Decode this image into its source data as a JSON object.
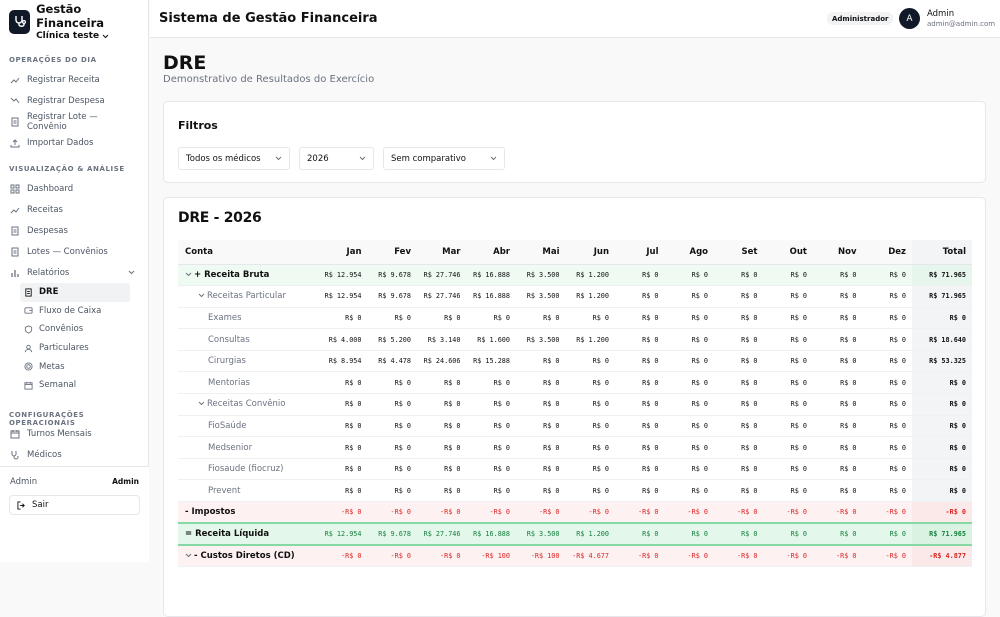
{
  "app": {
    "name": "Gestão Financeira",
    "clinic": "Clínica teste"
  },
  "sidebar": {
    "sections": [
      {
        "title": "OPERAÇÕES DO DIA",
        "items": [
          "Registrar Receita",
          "Registrar Despesa",
          "Registrar Lote — Convênio",
          "Importar Dados"
        ]
      },
      {
        "title": "VISUALIZAÇÃO & ANÁLISE",
        "items": [
          "Dashboard",
          "Receitas",
          "Despesas",
          "Lotes — Convênios",
          "Relatórios"
        ]
      },
      {
        "title": "CONFIGURAÇÕES OPERACIONAIS",
        "items": [
          "Turnos Mensais",
          "Médicos"
        ]
      }
    ],
    "subitems": [
      "DRE",
      "Fluxo de Caixa",
      "Convênios",
      "Particulares",
      "Metas",
      "Semanal"
    ],
    "active_subitem": "DRE",
    "footer": {
      "user_label": "Admin",
      "role": "Admin",
      "logout": "Sair"
    }
  },
  "topbar": {
    "title": "Sistema de Gestão Financeira",
    "role_badge": "Administrador",
    "avatar_initial": "A",
    "user_name": "Admin",
    "user_email": "admin@admin.com"
  },
  "page": {
    "title": "DRE",
    "subtitle": "Demonstrativo de Resultados do Exercício"
  },
  "filters": {
    "title": "Filtros",
    "doctor": "Todos os médicos",
    "year": "2026",
    "comparison": "Sem comparativo"
  },
  "dre": {
    "title": "DRE - 2026",
    "columns": [
      "Conta",
      "Jan",
      "Fev",
      "Mar",
      "Abr",
      "Mai",
      "Jun",
      "Jul",
      "Ago",
      "Set",
      "Out",
      "Nov",
      "Dez",
      "Total"
    ],
    "rows": [
      {
        "label": "+ Receita Bruta",
        "level": 0,
        "style": "green",
        "chevron": true,
        "values": [
          "R$ 12.954",
          "R$ 9.678",
          "R$ 27.746",
          "R$ 16.888",
          "R$ 3.500",
          "R$ 1.200",
          "R$ 0",
          "R$ 0",
          "R$ 0",
          "R$ 0",
          "R$ 0",
          "R$ 0",
          "R$ 71.965"
        ]
      },
      {
        "label": "Receitas Particular",
        "level": 1,
        "style": "",
        "chevron": true,
        "values": [
          "R$ 12.954",
          "R$ 9.678",
          "R$ 27.746",
          "R$ 16.888",
          "R$ 3.500",
          "R$ 1.200",
          "R$ 0",
          "R$ 0",
          "R$ 0",
          "R$ 0",
          "R$ 0",
          "R$ 0",
          "R$ 71.965"
        ]
      },
      {
        "label": "Exames",
        "level": 2,
        "style": "",
        "chevron": false,
        "values": [
          "R$ 0",
          "R$ 0",
          "R$ 0",
          "R$ 0",
          "R$ 0",
          "R$ 0",
          "R$ 0",
          "R$ 0",
          "R$ 0",
          "R$ 0",
          "R$ 0",
          "R$ 0",
          "R$ 0"
        ]
      },
      {
        "label": "Consultas",
        "level": 2,
        "style": "",
        "chevron": false,
        "values": [
          "R$ 4.000",
          "R$ 5.200",
          "R$ 3.140",
          "R$ 1.600",
          "R$ 3.500",
          "R$ 1.200",
          "R$ 0",
          "R$ 0",
          "R$ 0",
          "R$ 0",
          "R$ 0",
          "R$ 0",
          "R$ 18.640"
        ]
      },
      {
        "label": "Cirurgias",
        "level": 2,
        "style": "",
        "chevron": false,
        "values": [
          "R$ 8.954",
          "R$ 4.478",
          "R$ 24.606",
          "R$ 15.288",
          "R$ 0",
          "R$ 0",
          "R$ 0",
          "R$ 0",
          "R$ 0",
          "R$ 0",
          "R$ 0",
          "R$ 0",
          "R$ 53.325"
        ]
      },
      {
        "label": "Mentorias",
        "level": 2,
        "style": "",
        "chevron": false,
        "values": [
          "R$ 0",
          "R$ 0",
          "R$ 0",
          "R$ 0",
          "R$ 0",
          "R$ 0",
          "R$ 0",
          "R$ 0",
          "R$ 0",
          "R$ 0",
          "R$ 0",
          "R$ 0",
          "R$ 0"
        ]
      },
      {
        "label": "Receitas Convênio",
        "level": 1,
        "style": "",
        "chevron": true,
        "values": [
          "R$ 0",
          "R$ 0",
          "R$ 0",
          "R$ 0",
          "R$ 0",
          "R$ 0",
          "R$ 0",
          "R$ 0",
          "R$ 0",
          "R$ 0",
          "R$ 0",
          "R$ 0",
          "R$ 0"
        ]
      },
      {
        "label": "FioSaúde",
        "level": 2,
        "style": "",
        "chevron": false,
        "values": [
          "R$ 0",
          "R$ 0",
          "R$ 0",
          "R$ 0",
          "R$ 0",
          "R$ 0",
          "R$ 0",
          "R$ 0",
          "R$ 0",
          "R$ 0",
          "R$ 0",
          "R$ 0",
          "R$ 0"
        ]
      },
      {
        "label": "Medsenior",
        "level": 2,
        "style": "",
        "chevron": false,
        "values": [
          "R$ 0",
          "R$ 0",
          "R$ 0",
          "R$ 0",
          "R$ 0",
          "R$ 0",
          "R$ 0",
          "R$ 0",
          "R$ 0",
          "R$ 0",
          "R$ 0",
          "R$ 0",
          "R$ 0"
        ]
      },
      {
        "label": "Fiosaude (fiocruz)",
        "level": 2,
        "style": "",
        "chevron": false,
        "values": [
          "R$ 0",
          "R$ 0",
          "R$ 0",
          "R$ 0",
          "R$ 0",
          "R$ 0",
          "R$ 0",
          "R$ 0",
          "R$ 0",
          "R$ 0",
          "R$ 0",
          "R$ 0",
          "R$ 0"
        ]
      },
      {
        "label": "Prevent",
        "level": 2,
        "style": "",
        "chevron": false,
        "values": [
          "R$ 0",
          "R$ 0",
          "R$ 0",
          "R$ 0",
          "R$ 0",
          "R$ 0",
          "R$ 0",
          "R$ 0",
          "R$ 0",
          "R$ 0",
          "R$ 0",
          "R$ 0",
          "R$ 0"
        ]
      },
      {
        "label": "- Impostos",
        "level": 0,
        "style": "red",
        "chevron": false,
        "values": [
          "-R$ 0",
          "-R$ 0",
          "-R$ 0",
          "-R$ 0",
          "-R$ 0",
          "-R$ 0",
          "-R$ 0",
          "-R$ 0",
          "-R$ 0",
          "-R$ 0",
          "-R$ 0",
          "-R$ 0",
          "-R$ 0"
        ]
      },
      {
        "label": "= Receita Líquida",
        "level": 0,
        "style": "netrow",
        "chevron": false,
        "values": [
          "R$ 12.954",
          "R$ 9.678",
          "R$ 27.746",
          "R$ 16.888",
          "R$ 3.500",
          "R$ 1.200",
          "R$ 0",
          "R$ 0",
          "R$ 0",
          "R$ 0",
          "R$ 0",
          "R$ 0",
          "R$ 71.965"
        ]
      },
      {
        "label": "- Custos Diretos (CD)",
        "level": 0,
        "style": "red",
        "chevron": true,
        "values": [
          "-R$ 0",
          "-R$ 0",
          "-R$ 0",
          "-R$ 100",
          "-R$ 100",
          "-R$ 4.677",
          "-R$ 0",
          "-R$ 0",
          "-R$ 0",
          "-R$ 0",
          "-R$ 0",
          "-R$ 0",
          "-R$ 4.877"
        ]
      }
    ]
  }
}
